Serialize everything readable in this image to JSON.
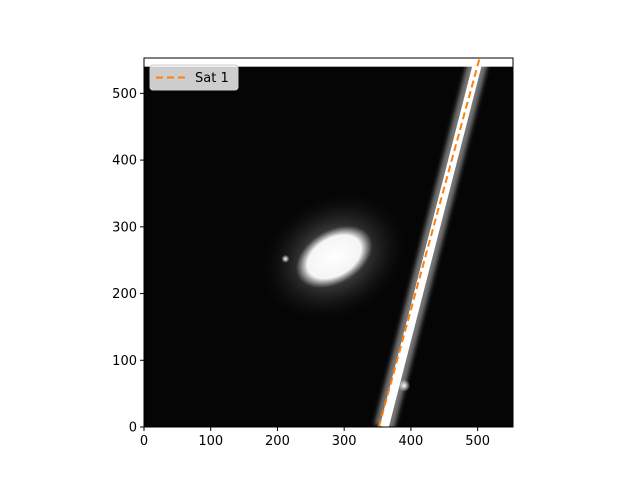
{
  "chart_data": {
    "type": "image",
    "title": "",
    "xlabel": "",
    "ylabel": "",
    "xlim": [
      0,
      553
    ],
    "ylim": [
      0,
      553
    ],
    "image_extent_y": [
      0,
      540
    ],
    "colormap": "grayscale",
    "x_ticks": [
      0,
      100,
      200,
      300,
      400,
      500
    ],
    "y_ticks": [
      0,
      100,
      200,
      300,
      400,
      500
    ],
    "galaxy": {
      "center": [
        285,
        255
      ],
      "core_semi_axes": [
        62,
        40
      ],
      "halo_semi_axes": [
        120,
        95
      ],
      "angle_deg": -30
    },
    "stars": [
      {
        "x": 390,
        "y": 62
      },
      {
        "x": 212,
        "y": 252
      }
    ],
    "streak": {
      "from": [
        360,
        0
      ],
      "to": [
        502,
        553
      ]
    },
    "series": [
      {
        "name": "Sat 1",
        "style": "dashed",
        "color": "#ff7f0e",
        "x": [
          352,
          503
        ],
        "y": [
          0,
          553
        ]
      }
    ],
    "legend": {
      "position": "upper-left",
      "entries": [
        "Sat 1"
      ]
    }
  }
}
